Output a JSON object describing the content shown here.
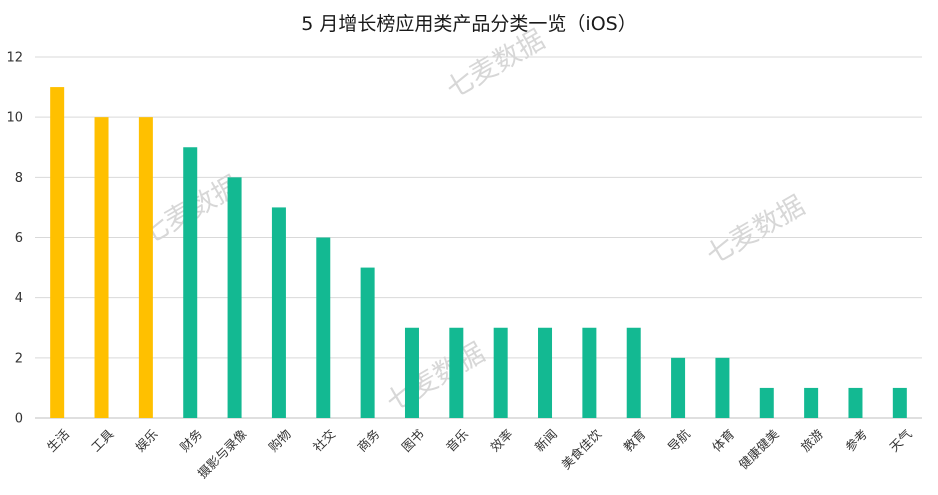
{
  "chart_data": {
    "type": "bar",
    "title": "5 月增长榜应用类产品分类一览（iOS）",
    "xlabel": "",
    "ylabel": "",
    "ylim": [
      0,
      12
    ],
    "yticks": [
      0,
      2,
      4,
      6,
      8,
      10,
      12
    ],
    "grid": true,
    "legend": "none",
    "categories": [
      "生活",
      "工具",
      "娱乐",
      "财务",
      "摄影与录像",
      "购物",
      "社交",
      "商务",
      "图书",
      "音乐",
      "效率",
      "新闻",
      "美食佳饮",
      "教育",
      "导航",
      "体育",
      "健康健美",
      "旅游",
      "参考",
      "天气"
    ],
    "values": [
      11,
      10,
      10,
      9,
      8,
      7,
      6,
      5,
      3,
      3,
      3,
      3,
      3,
      3,
      2,
      2,
      1,
      1,
      1,
      1
    ],
    "highlight_count": 3,
    "colors": {
      "highlight": "#FFC000",
      "normal": "#13B992",
      "grid": "#d9d9d9",
      "axis": "#bfbfbf"
    }
  },
  "watermark": {
    "text": "七麦数据"
  }
}
